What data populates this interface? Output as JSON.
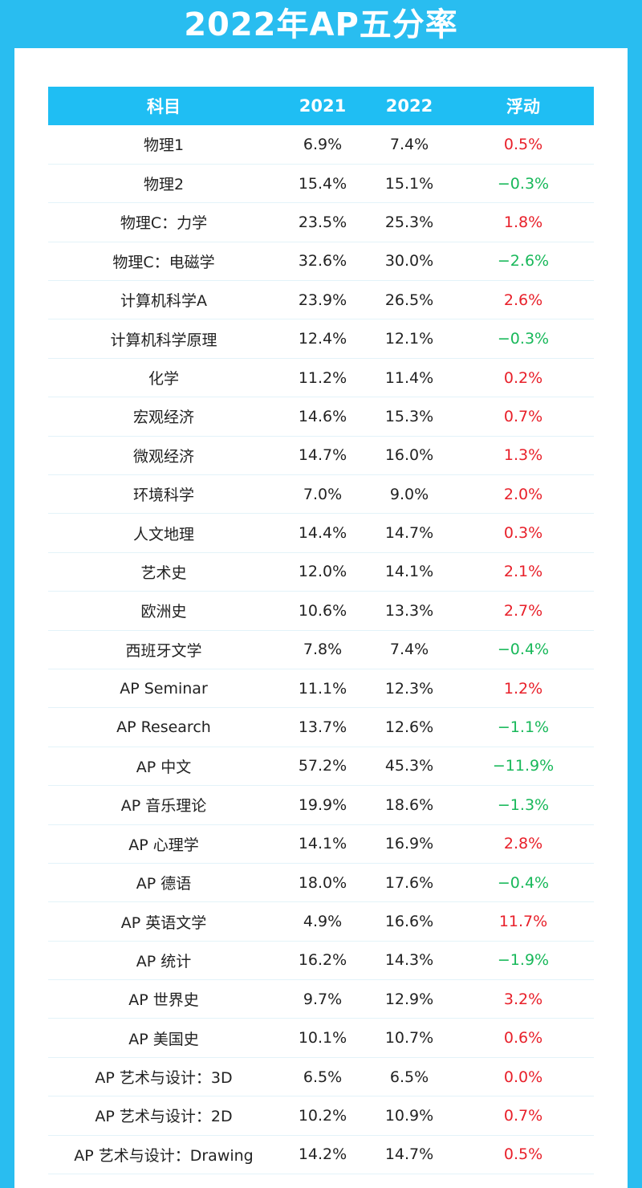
{
  "title": "2022年AP五分率",
  "table": {
    "headers": [
      "科目",
      "2021",
      "2022",
      "浮动"
    ],
    "rows": [
      {
        "subject": "物理1",
        "y2021": "6.9%",
        "y2022": "7.4%",
        "change": "0.5%",
        "trend": "up"
      },
      {
        "subject": "物理2",
        "y2021": "15.4%",
        "y2022": "15.1%",
        "change": "−0.3%",
        "trend": "down"
      },
      {
        "subject": "物理C：力学",
        "y2021": "23.5%",
        "y2022": "25.3%",
        "change": "1.8%",
        "trend": "up"
      },
      {
        "subject": "物理C：电磁学",
        "y2021": "32.6%",
        "y2022": "30.0%",
        "change": "−2.6%",
        "trend": "down"
      },
      {
        "subject": "计算机科学A",
        "y2021": "23.9%",
        "y2022": "26.5%",
        "change": "2.6%",
        "trend": "up"
      },
      {
        "subject": "计算机科学原理",
        "y2021": "12.4%",
        "y2022": "12.1%",
        "change": "−0.3%",
        "trend": "down"
      },
      {
        "subject": "化学",
        "y2021": "11.2%",
        "y2022": "11.4%",
        "change": "0.2%",
        "trend": "up"
      },
      {
        "subject": "宏观经济",
        "y2021": "14.6%",
        "y2022": "15.3%",
        "change": "0.7%",
        "trend": "up"
      },
      {
        "subject": "微观经济",
        "y2021": "14.7%",
        "y2022": "16.0%",
        "change": "1.3%",
        "trend": "up"
      },
      {
        "subject": "环境科学",
        "y2021": "7.0%",
        "y2022": "9.0%",
        "change": "2.0%",
        "trend": "up"
      },
      {
        "subject": "人文地理",
        "y2021": "14.4%",
        "y2022": "14.7%",
        "change": "0.3%",
        "trend": "up"
      },
      {
        "subject": "艺术史",
        "y2021": "12.0%",
        "y2022": "14.1%",
        "change": "2.1%",
        "trend": "up"
      },
      {
        "subject": "欧洲史",
        "y2021": "10.6%",
        "y2022": "13.3%",
        "change": "2.7%",
        "trend": "up"
      },
      {
        "subject": "西班牙文学",
        "y2021": "7.8%",
        "y2022": "7.4%",
        "change": "−0.4%",
        "trend": "down"
      },
      {
        "subject": "AP Seminar",
        "y2021": "11.1%",
        "y2022": "12.3%",
        "change": "1.2%",
        "trend": "up"
      },
      {
        "subject": "AP Research",
        "y2021": "13.7%",
        "y2022": "12.6%",
        "change": "−1.1%",
        "trend": "down"
      },
      {
        "subject": "AP 中文",
        "y2021": "57.2%",
        "y2022": "45.3%",
        "change": "−11.9%",
        "trend": "down"
      },
      {
        "subject": "AP 音乐理论",
        "y2021": "19.9%",
        "y2022": "18.6%",
        "change": "−1.3%",
        "trend": "down"
      },
      {
        "subject": "AP 心理学",
        "y2021": "14.1%",
        "y2022": "16.9%",
        "change": "2.8%",
        "trend": "up"
      },
      {
        "subject": "AP 德语",
        "y2021": "18.0%",
        "y2022": "17.6%",
        "change": "−0.4%",
        "trend": "down"
      },
      {
        "subject": "AP 英语文学",
        "y2021": "4.9%",
        "y2022": "16.6%",
        "change": "11.7%",
        "trend": "up"
      },
      {
        "subject": "AP 统计",
        "y2021": "16.2%",
        "y2022": "14.3%",
        "change": "−1.9%",
        "trend": "down"
      },
      {
        "subject": "AP 世界史",
        "y2021": "9.7%",
        "y2022": "12.9%",
        "change": "3.2%",
        "trend": "up"
      },
      {
        "subject": "AP 美国史",
        "y2021": "10.1%",
        "y2022": "10.7%",
        "change": "0.6%",
        "trend": "up"
      },
      {
        "subject": "AP 艺术与设计：3D",
        "y2021": "6.5%",
        "y2022": "6.5%",
        "change": "0.0%",
        "trend": "zero"
      },
      {
        "subject": "AP 艺术与设计：2D",
        "y2021": "10.2%",
        "y2022": "10.9%",
        "change": "0.7%",
        "trend": "up"
      },
      {
        "subject": "AP 艺术与设计：Drawing",
        "y2021": "14.2%",
        "y2022": "14.7%",
        "change": "0.5%",
        "trend": "up"
      }
    ]
  },
  "colors": {
    "background": "#29bdf0",
    "header": "#1fbef3",
    "positive": "#e8202a",
    "negative": "#18b85a"
  }
}
